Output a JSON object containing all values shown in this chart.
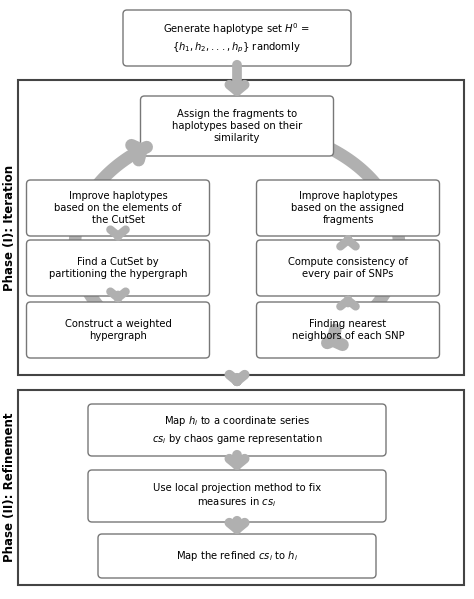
{
  "bg_color": "#ffffff",
  "phase1_label": "Phase (I): Iteration",
  "phase2_label": "Phase (II): Refinement",
  "top_box_text": "Generate haplotype set $H^0$ =\n{$h_1, h_2, ..., h_p$} randomly",
  "assign_box_text": "Assign the fragments to\nhaplotypes based on their\nsimilarity",
  "box_left_top_text": "Improve haplotypes\nbased on the elements of\nthe CutSet",
  "box_right_top_text": "Improve haplotypes\nbased on the assigned\nfragments",
  "box_left_mid_text": "Find a CutSet by\npartitioning the hypergraph",
  "box_right_mid_text": "Compute consistency of\nevery pair of SNPs",
  "box_left_bot_text": "Construct a weighted\nhypergraph",
  "box_right_bot_text": "Finding nearest\nneighbors of each SNP",
  "ref_box1_text": "Map $h_i$ to a coordinate series\n$cs_i$ by chaos game representation",
  "ref_box2_text": "Use local projection method to fix\nmeasures in $cs_i$",
  "ref_box3_text": "Map the refined $cs_i$ to $h_i$",
  "arrow_color": "#b0b0b0",
  "box_border": "#777777",
  "phase_border": "#444444",
  "font_size_label": 8.5,
  "font_size_box": 7.2
}
